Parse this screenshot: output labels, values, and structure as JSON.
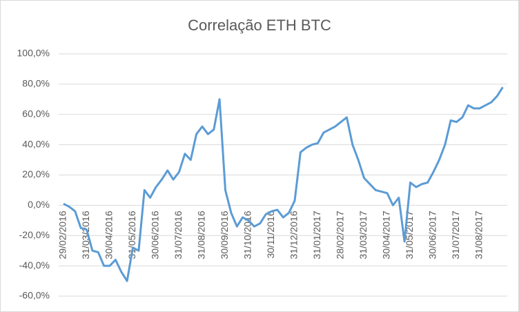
{
  "chart_data": {
    "type": "line",
    "title": "Correlação ETH BTC",
    "categories": [
      "29/02/2016",
      null,
      null,
      null,
      "31/03/2016",
      null,
      null,
      null,
      "30/04/2016",
      null,
      null,
      null,
      "31/05/2016",
      null,
      null,
      null,
      "30/06/2016",
      null,
      null,
      null,
      "31/07/2016",
      null,
      null,
      null,
      "31/08/2016",
      null,
      null,
      null,
      "30/09/2016",
      null,
      null,
      null,
      "31/10/2016",
      null,
      null,
      null,
      "30/11/2016",
      null,
      null,
      null,
      "31/12/2016",
      null,
      null,
      null,
      "31/01/2017",
      null,
      null,
      null,
      "28/02/2017",
      null,
      null,
      null,
      "31/03/2017",
      null,
      null,
      null,
      "30/04/2017",
      null,
      null,
      null,
      "31/05/2017",
      null,
      null,
      null,
      "30/06/2017",
      null,
      null,
      null,
      "31/07/2017",
      null,
      null,
      null,
      "31/08/2017",
      null,
      null,
      null,
      null
    ],
    "series": [
      {
        "color": "#5b9bd5",
        "values": [
          1,
          -1,
          -4,
          -15,
          -16,
          -30,
          -31,
          -40,
          -40,
          -36,
          -44,
          -50,
          -28,
          -30,
          10,
          5,
          12,
          17,
          23,
          17,
          22,
          34,
          30,
          47,
          52,
          47,
          50,
          70,
          10,
          -5,
          -14,
          -8,
          -10,
          -14,
          -12,
          -6,
          -4,
          -3,
          -8,
          -5,
          3,
          35,
          38,
          40,
          41,
          48,
          50,
          52,
          55,
          58,
          40,
          30,
          18,
          14,
          10,
          9,
          8,
          0,
          5,
          -24,
          15,
          12,
          14,
          15,
          22,
          30,
          40,
          56,
          55,
          58,
          66,
          64,
          64,
          66,
          68,
          72,
          78
        ]
      }
    ],
    "ylim": [
      -60,
      100
    ],
    "yticks": [
      {
        "value": -60,
        "label": "-60,0%"
      },
      {
        "value": -40,
        "label": "-40,0%"
      },
      {
        "value": -20,
        "label": "-20,0%"
      },
      {
        "value": 0,
        "label": "0,0%"
      },
      {
        "value": 20,
        "label": "20,0%"
      },
      {
        "value": 40,
        "label": "40,0%"
      },
      {
        "value": 60,
        "label": "60,0%"
      },
      {
        "value": 80,
        "label": "80,0%"
      },
      {
        "value": 100,
        "label": "100,0%"
      }
    ],
    "grid": true
  }
}
